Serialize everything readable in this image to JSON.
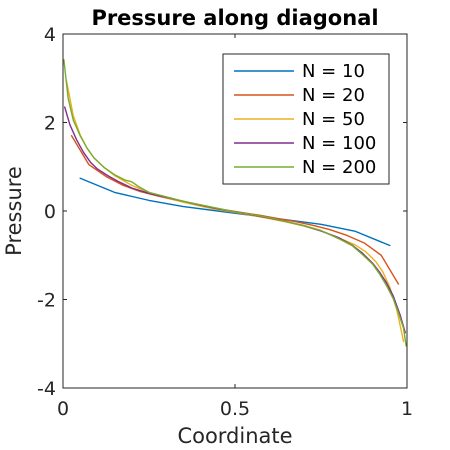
{
  "chart_data": {
    "type": "line",
    "title": "Pressure along diagonal",
    "xlabel": "Coordinate",
    "ylabel": "Pressure",
    "xlim": [
      0,
      1
    ],
    "ylim": [
      -4,
      4
    ],
    "xticks": [
      0,
      0.5,
      1
    ],
    "xtick_labels": [
      "0",
      "0.5",
      "1"
    ],
    "yticks": [
      -4,
      -2,
      0,
      2,
      4
    ],
    "ytick_labels": [
      "-4",
      "-2",
      "0",
      "2",
      "4"
    ],
    "grid": false,
    "legend_position": "top-right",
    "series": [
      {
        "name": "N = 10",
        "color": "#0072BD",
        "x": [
          0.05,
          0.15,
          0.25,
          0.35,
          0.45,
          0.55,
          0.65,
          0.75,
          0.85,
          0.95
        ],
        "y": [
          0.74,
          0.42,
          0.24,
          0.1,
          0.0,
          -0.1,
          -0.2,
          -0.3,
          -0.46,
          -0.78
        ]
      },
      {
        "name": "N = 20",
        "color": "#D95319",
        "x": [
          0.025,
          0.075,
          0.125,
          0.175,
          0.225,
          0.275,
          0.325,
          0.375,
          0.425,
          0.475,
          0.525,
          0.575,
          0.625,
          0.675,
          0.725,
          0.775,
          0.825,
          0.875,
          0.925,
          0.975
        ],
        "y": [
          1.7,
          1.05,
          0.78,
          0.58,
          0.44,
          0.34,
          0.25,
          0.16,
          0.08,
          0.02,
          -0.04,
          -0.1,
          -0.17,
          -0.24,
          -0.32,
          -0.42,
          -0.55,
          -0.72,
          -1.0,
          -1.65
        ]
      },
      {
        "name": "N = 50",
        "color": "#EDB120",
        "x": [
          0.01,
          0.03,
          0.05,
          0.07,
          0.09,
          0.12,
          0.15,
          0.2,
          0.25,
          0.3,
          0.35,
          0.4,
          0.45,
          0.5,
          0.55,
          0.6,
          0.65,
          0.7,
          0.75,
          0.8,
          0.85,
          0.88,
          0.91,
          0.93,
          0.95,
          0.97,
          0.99
        ],
        "y": [
          2.95,
          2.15,
          1.72,
          1.42,
          1.2,
          0.98,
          0.8,
          0.58,
          0.42,
          0.3,
          0.2,
          0.11,
          0.03,
          -0.03,
          -0.1,
          -0.17,
          -0.25,
          -0.34,
          -0.45,
          -0.6,
          -0.77,
          -0.92,
          -1.15,
          -1.38,
          -1.72,
          -2.22,
          -2.95
        ]
      },
      {
        "name": "N = 100",
        "color": "#7E2F8E",
        "x": [
          0.005,
          0.02,
          0.04,
          0.06,
          0.08,
          0.1,
          0.13,
          0.16,
          0.2,
          0.25,
          0.3,
          0.35,
          0.4,
          0.45,
          0.5,
          0.55,
          0.6,
          0.65,
          0.7,
          0.75,
          0.8,
          0.84,
          0.87,
          0.9,
          0.92,
          0.94,
          0.96,
          0.98,
          0.995
        ],
        "y": [
          2.35,
          1.95,
          1.6,
          1.32,
          1.1,
          0.95,
          0.8,
          0.67,
          0.52,
          0.4,
          0.31,
          0.22,
          0.13,
          0.05,
          -0.02,
          -0.09,
          -0.16,
          -0.24,
          -0.33,
          -0.45,
          -0.6,
          -0.77,
          -0.95,
          -1.18,
          -1.38,
          -1.62,
          -1.92,
          -2.35,
          -2.75
        ]
      },
      {
        "name": "N = 200",
        "color": "#77AC30",
        "x": [
          0.0025,
          0.015,
          0.03,
          0.05,
          0.07,
          0.09,
          0.12,
          0.15,
          0.18,
          0.2,
          0.22,
          0.25,
          0.3,
          0.35,
          0.4,
          0.45,
          0.5,
          0.55,
          0.6,
          0.65,
          0.7,
          0.75,
          0.8,
          0.84,
          0.87,
          0.9,
          0.92,
          0.94,
          0.96,
          0.975,
          0.99,
          0.9975
        ],
        "y": [
          3.42,
          2.55,
          2.05,
          1.7,
          1.42,
          1.2,
          0.98,
          0.82,
          0.7,
          0.66,
          0.55,
          0.42,
          0.32,
          0.22,
          0.14,
          0.06,
          -0.02,
          -0.08,
          -0.15,
          -0.24,
          -0.33,
          -0.44,
          -0.62,
          -0.78,
          -0.98,
          -1.2,
          -1.42,
          -1.68,
          -1.98,
          -2.3,
          -2.65,
          -3.05
        ]
      }
    ]
  }
}
